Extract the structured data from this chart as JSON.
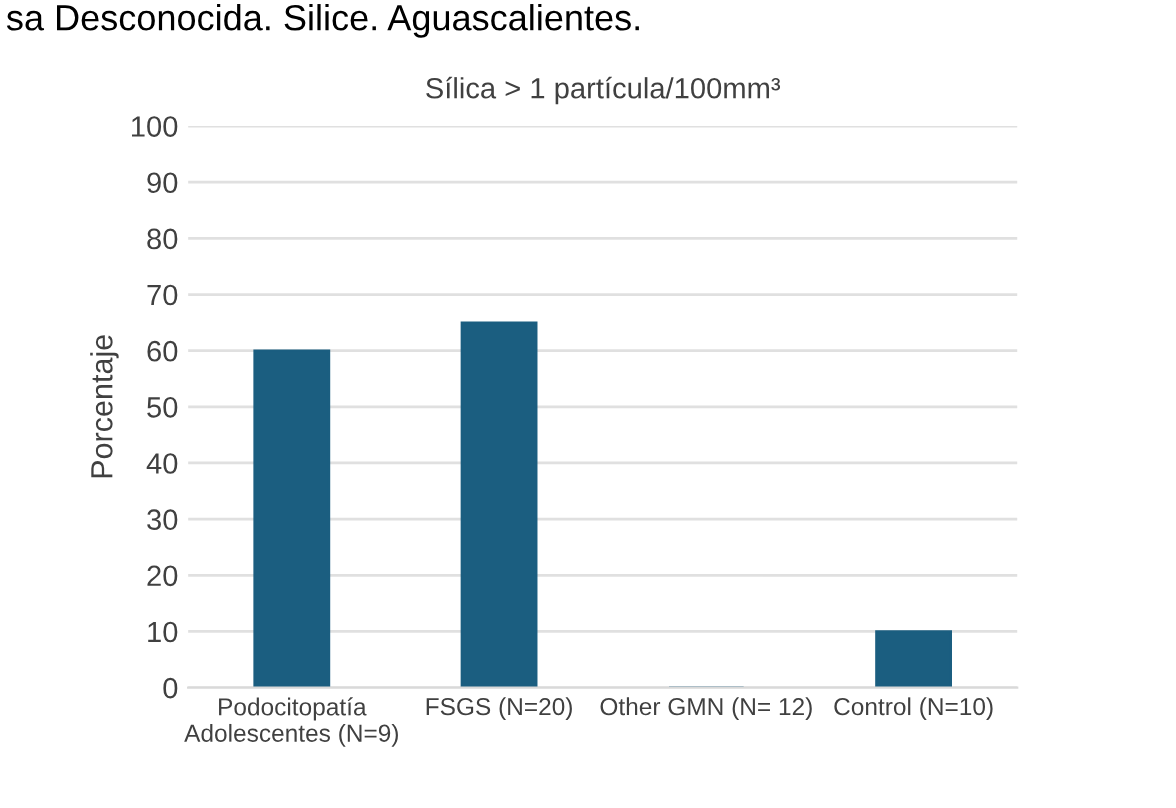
{
  "chart_data": {
    "type": "bar",
    "title": "Sílica > 1 partícula/100mm³",
    "ylabel": "Porcentaje",
    "annotations": [
      "sa Desconocida. Silice. Aguascalientes."
    ],
    "categories": [
      "Podocitopatía\nAdolescentes (N=9)",
      "FSGS (N=20)",
      "Other GMN (N= 12)",
      "Control (N=10)"
    ],
    "values": [
      60,
      65,
      0,
      10
    ],
    "color": "#1b5e80",
    "ylim": [
      0,
      100
    ],
    "yticks": [
      0,
      10,
      20,
      30,
      40,
      50,
      60,
      70,
      80,
      90,
      100
    ],
    "grid": "y"
  }
}
